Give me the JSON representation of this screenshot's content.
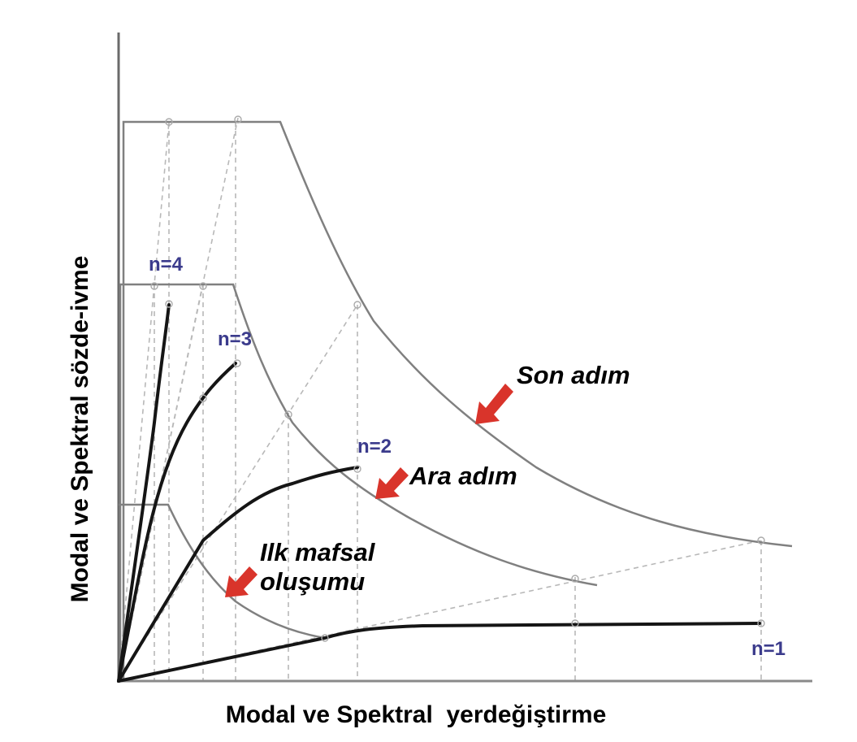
{
  "figure": {
    "x_axis_label": "Modal ve Spektral  yerdeğiştirme",
    "y_axis_label": "Modal ve Spektral sözde-ivme",
    "mode_labels": [
      "n=1",
      "n=2",
      "n=3",
      "n=4"
    ],
    "annotations": {
      "last_step": "Son adım",
      "intermediate_step": "Ara adım",
      "first_hinge_line1": "Ilk mafsal",
      "first_hinge_line2": "oluşumu"
    },
    "colors": {
      "arrow": "#d9342b",
      "mode_label": "#3b3b8c",
      "capacity_curve": "#151515",
      "demand_curve": "#808080"
    }
  }
}
